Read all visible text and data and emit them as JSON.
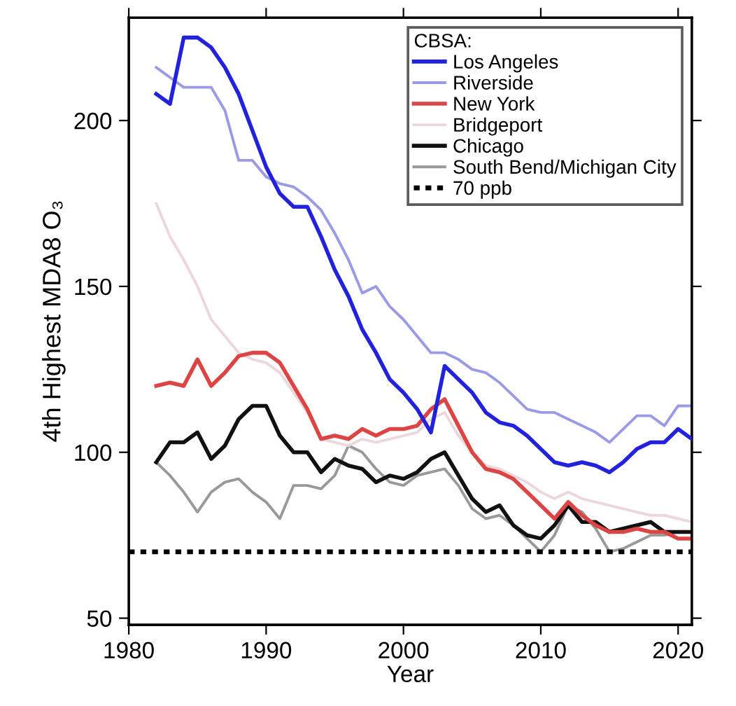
{
  "chart_data": {
    "type": "line",
    "xlabel": "Year",
    "ylabel": "4th Highest MDA8 O₃",
    "legend_title": "CBSA:",
    "legend": "top right",
    "grid": false,
    "x": [
      1982,
      1983,
      1984,
      1985,
      1986,
      1987,
      1988,
      1989,
      1990,
      1991,
      1992,
      1993,
      1994,
      1995,
      1996,
      1997,
      1998,
      1999,
      2000,
      2001,
      2002,
      2003,
      2004,
      2005,
      2006,
      2007,
      2008,
      2009,
      2010,
      2011,
      2012,
      2013,
      2014,
      2015,
      2016,
      2017,
      2018,
      2019,
      2020,
      2021
    ],
    "xlim": [
      1980,
      2021
    ],
    "xticks": [
      1980,
      1990,
      2000,
      2010,
      2020
    ],
    "ylim": [
      48,
      231
    ],
    "yticks": [
      50,
      100,
      150,
      200
    ],
    "series": [
      {
        "name": "Los Angeles",
        "color": "#2222dd",
        "values": [
          208,
          205,
          225,
          225,
          222,
          216,
          208,
          197,
          186,
          178,
          174,
          174,
          165,
          155,
          147,
          137,
          130,
          122,
          118,
          113,
          106,
          126,
          122,
          118,
          112,
          109,
          108,
          105,
          101,
          97,
          96,
          97,
          96,
          94,
          97,
          101,
          103,
          103,
          107,
          104
        ]
      },
      {
        "name": "Riverside",
        "color": "#9a9ae6",
        "values": [
          216,
          213,
          210,
          210,
          210,
          203,
          188,
          188,
          183,
          181,
          180,
          177,
          173,
          166,
          158,
          148,
          150,
          144,
          140,
          135,
          130,
          130,
          128,
          125,
          124,
          121,
          117,
          113,
          112,
          112,
          110,
          108,
          106,
          103,
          107,
          111,
          111,
          108,
          114,
          114
        ]
      },
      {
        "name": "New York",
        "color": "#dd4444",
        "values": [
          120,
          121,
          120,
          128,
          120,
          124,
          129,
          130,
          130,
          127,
          120,
          113,
          104,
          105,
          104,
          107,
          105,
          107,
          107,
          108,
          113,
          116,
          108,
          100,
          95,
          94,
          92,
          88,
          84,
          80,
          85,
          81,
          78,
          76,
          76,
          77,
          76,
          76,
          74,
          74
        ]
      },
      {
        "name": "Bridgeport",
        "color": "#ecd8dc",
        "values": [
          175,
          165,
          158,
          150,
          140,
          135,
          130,
          128,
          127,
          124,
          118,
          112,
          104,
          103,
          102,
          104,
          103,
          104,
          105,
          106,
          110,
          112,
          105,
          100,
          96,
          95,
          93,
          91,
          88,
          86,
          88,
          86,
          85,
          84,
          83,
          82,
          81,
          81,
          80,
          79
        ]
      },
      {
        "name": "Chicago",
        "color": "#111111",
        "values": [
          97,
          103,
          103,
          106,
          98,
          102,
          110,
          114,
          114,
          105,
          100,
          100,
          94,
          98,
          96,
          95,
          91,
          93,
          92,
          94,
          98,
          100,
          93,
          86,
          82,
          84,
          78,
          75,
          74,
          78,
          84,
          79,
          79,
          76,
          77,
          78,
          79,
          76,
          76,
          76
        ]
      },
      {
        "name": "South Bend/Michigan City",
        "color": "#999999",
        "values": [
          97,
          93,
          88,
          82,
          88,
          91,
          92,
          88,
          85,
          80,
          90,
          90,
          89,
          93,
          102,
          100,
          95,
          91,
          90,
          93,
          94,
          95,
          90,
          83,
          80,
          81,
          78,
          74,
          70,
          75,
          84,
          82,
          77,
          70,
          71,
          73,
          75,
          75,
          76,
          76
        ]
      }
    ],
    "ref_lines": [
      {
        "axis": "y",
        "value": 70,
        "label": "70 ppb",
        "color": "#000000",
        "line_style": "dotted"
      }
    ]
  }
}
